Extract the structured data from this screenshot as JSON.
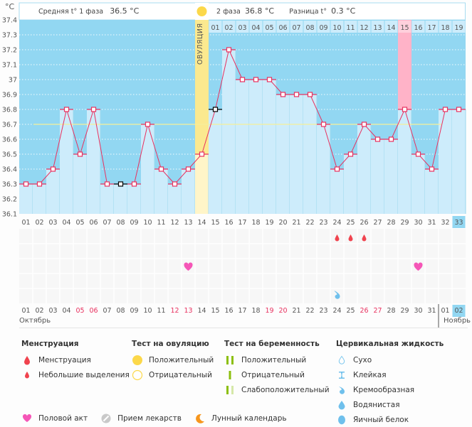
{
  "header": {
    "unit": "°C",
    "phase1_label": "Средняя t° 1 фаза",
    "phase1_value": "36.5 °C",
    "phase2_label": "2 фаза",
    "phase2_value": "36.8 °C",
    "diff_label": "Разница t°",
    "diff_value": "0.3 °C",
    "ovulation_label": "ОВУЛЯЦИЯ"
  },
  "chart_data": {
    "type": "line",
    "title": "",
    "xlabel": "",
    "ylabel": "°C",
    "ylim": [
      36.1,
      37.4
    ],
    "y_ticks": [
      "36.1",
      "36.2",
      "36.3",
      "36.4",
      "36.5",
      "36.6",
      "36.7",
      "36.8",
      "36.9",
      "37",
      "37.1",
      "37.2",
      "37.3",
      "37.4"
    ],
    "cycle_days": [
      "01",
      "02",
      "03",
      "04",
      "05",
      "06",
      "07",
      "08",
      "09",
      "10",
      "11",
      "12",
      "13",
      "14",
      "15",
      "16",
      "17",
      "18",
      "19",
      "20",
      "21",
      "22",
      "23",
      "24",
      "25",
      "26",
      "27",
      "28",
      "29",
      "30",
      "31",
      "32",
      "33"
    ],
    "phase2_days": [
      "01",
      "02",
      "03",
      "04",
      "05",
      "06",
      "07",
      "08",
      "09",
      "10",
      "11",
      "12",
      "13",
      "14",
      "15",
      "16",
      "17",
      "18",
      "19"
    ],
    "series": [
      {
        "name": "Базальная температура",
        "values": [
          36.3,
          36.3,
          36.4,
          36.8,
          36.5,
          36.8,
          36.3,
          36.3,
          36.3,
          36.7,
          36.4,
          36.3,
          36.4,
          36.5,
          36.8,
          37.2,
          37.0,
          37.0,
          37.0,
          36.9,
          36.9,
          36.9,
          36.7,
          36.4,
          36.5,
          36.7,
          36.6,
          36.6,
          36.8,
          36.5,
          36.4,
          36.8,
          36.8
        ]
      }
    ],
    "excluded_points": [
      8,
      15
    ],
    "coverline": 36.7,
    "ovulation_day": 14,
    "highlight_phase2_day": 15,
    "current_day": 33,
    "calendar_days": [
      "01",
      "02",
      "03",
      "04",
      "05",
      "06",
      "07",
      "08",
      "09",
      "10",
      "11",
      "12",
      "13",
      "14",
      "15",
      "16",
      "17",
      "18",
      "19",
      "20",
      "21",
      "22",
      "23",
      "24",
      "25",
      "26",
      "27",
      "28",
      "29",
      "30",
      "31",
      "01",
      "02"
    ],
    "weekend_days": [
      5,
      6,
      12,
      13,
      19,
      20,
      26,
      27
    ],
    "months": [
      {
        "name": "Октябрь",
        "start_index": 1
      },
      {
        "name": "Ноябрь",
        "start_index": 32
      }
    ],
    "events": {
      "spotting": [
        24,
        25,
        26
      ],
      "intercourse": [
        13,
        30
      ],
      "cervical_creamy": [
        24
      ]
    }
  },
  "legend": {
    "menstruation": {
      "title": "Менструация",
      "items": [
        "Менструация",
        "Небольшие выделения"
      ]
    },
    "ovulation_test": {
      "title": "Тест на овуляцию",
      "items": [
        "Положительный",
        "Отрицательный"
      ]
    },
    "pregnancy_test": {
      "title": "Тест на беременность",
      "items": [
        "Положительный",
        "Отрицательный",
        "Слабоположительный"
      ]
    },
    "cervical": {
      "title": "Цервикальная жидкость",
      "items": [
        "Сухо",
        "Клейкая",
        "Кремообразная",
        "Водянистая",
        "Яичный белок"
      ]
    },
    "other": [
      "Половой акт",
      "Прием лекарств",
      "Лунный календарь"
    ]
  },
  "colors": {
    "sky": "#92d7f2",
    "bar": "#cdecfb",
    "line": "#e8315f",
    "ovulation": "#fbe98f",
    "ovulation_light": "#fff5c8",
    "pink": "#ffb3c8",
    "coverline": "#f6ef9a",
    "weekend": "#e8315f",
    "current": "#92d7f2"
  }
}
